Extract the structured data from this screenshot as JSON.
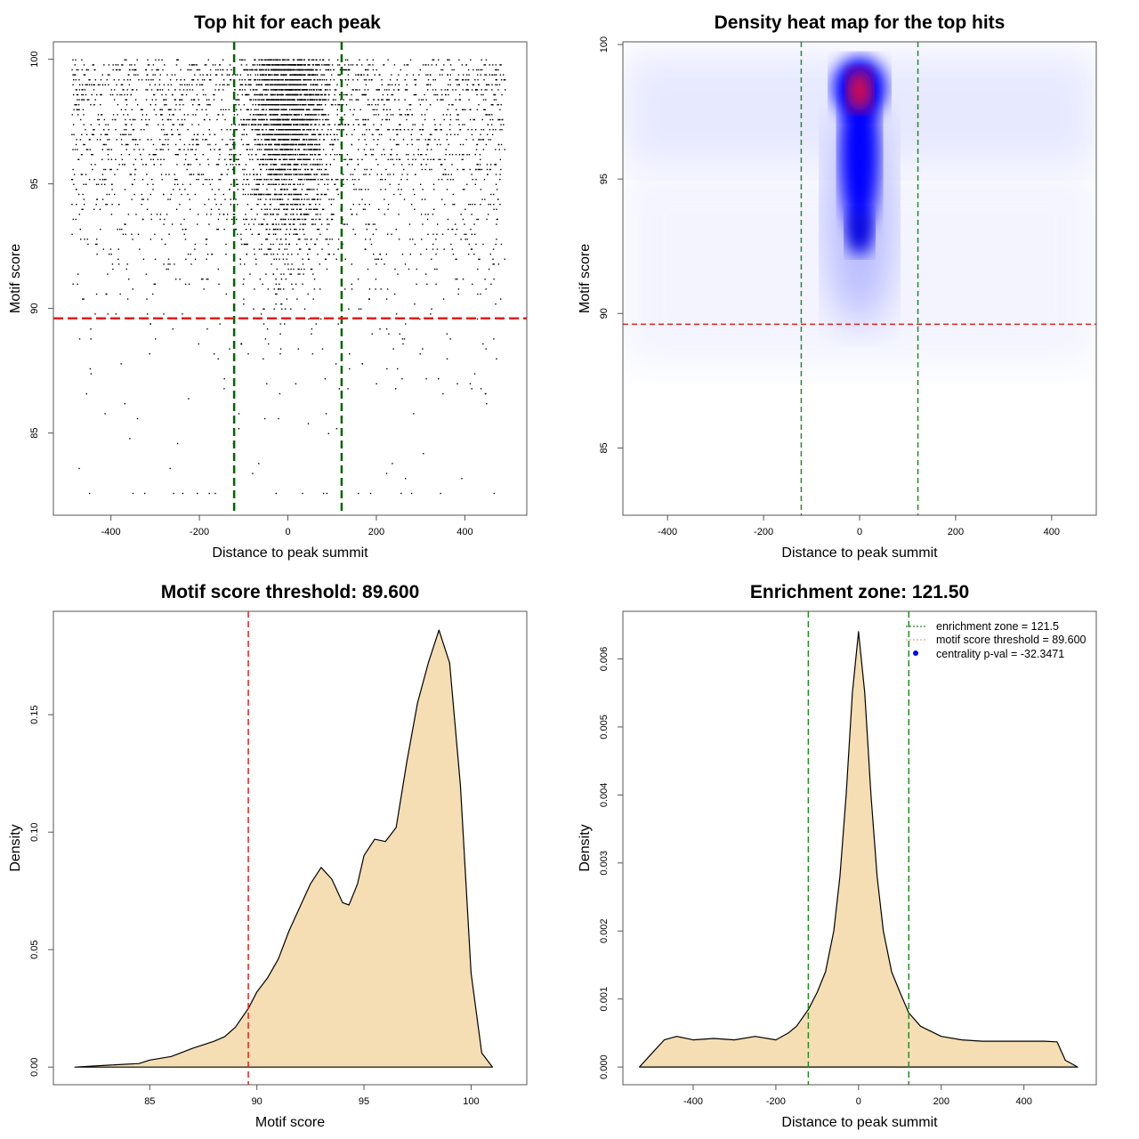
{
  "chart_data": [
    {
      "type": "scatter",
      "title": "Top hit for each peak",
      "xlabel": "Distance to peak summit",
      "ylabel": "Motif score",
      "xticks": [
        -400,
        -200,
        0,
        200,
        400
      ],
      "yticks": [
        85,
        90,
        95,
        100
      ],
      "xlim": [
        -530,
        540
      ],
      "ylim": [
        81.7,
        100.7
      ],
      "vlines": [
        -121.5,
        121.5
      ],
      "hline": 89.6,
      "colors": {
        "points": "#000000",
        "vline": "#006400",
        "hline": "#e0201e"
      }
    },
    {
      "type": "heatmap",
      "title": "Density heat map for the top hits",
      "xlabel": "Distance to peak summit",
      "ylabel": "Motif score",
      "xticks": [
        -400,
        -200,
        0,
        200,
        400
      ],
      "yticks": [
        85,
        90,
        95,
        100
      ],
      "xlim": [
        -493,
        493
      ],
      "ylim": [
        82.5,
        100.1
      ],
      "vlines": [
        -121.5,
        121.5
      ],
      "hline": 89.6,
      "peak": {
        "x": 0,
        "y": 98.3
      },
      "colors": {
        "low": "#ffffff",
        "mid": "#0000ff",
        "high": "#ff0000"
      }
    },
    {
      "type": "area",
      "title": "Motif score threshold: 89.600",
      "xlabel": "Motif score",
      "ylabel": "Density",
      "xticks": [
        85,
        90,
        95,
        100
      ],
      "yticks": [
        0.0,
        0.05,
        0.1,
        0.15
      ],
      "ytick_labels": [
        "0.00",
        "0.05",
        "0.10",
        "0.15"
      ],
      "xlim": [
        80.5,
        102.6
      ],
      "ylim": [
        -0.0075,
        0.194
      ],
      "vline": 89.6,
      "fill": "#f5deb3",
      "x": [
        81.5,
        83,
        84.5,
        85,
        86,
        87,
        88,
        88.5,
        89,
        89.6,
        90,
        90.5,
        91,
        91.5,
        92,
        92.5,
        93,
        93.5,
        94,
        94.3,
        94.7,
        95,
        95.5,
        96,
        96.5,
        97,
        97.5,
        98,
        98.5,
        99,
        99.5,
        100,
        100.5,
        101
      ],
      "y": [
        0,
        0.0008,
        0.0015,
        0.003,
        0.0045,
        0.008,
        0.011,
        0.013,
        0.017,
        0.025,
        0.032,
        0.038,
        0.046,
        0.058,
        0.068,
        0.078,
        0.085,
        0.08,
        0.07,
        0.069,
        0.078,
        0.09,
        0.097,
        0.096,
        0.102,
        0.13,
        0.155,
        0.172,
        0.186,
        0.172,
        0.12,
        0.04,
        0.006,
        0
      ]
    },
    {
      "type": "area",
      "title": "Enrichment zone: 121.50",
      "xlabel": "Distance to peak summit",
      "ylabel": "Density",
      "xticks": [
        -400,
        -200,
        0,
        200,
        400
      ],
      "yticks": [
        0,
        0.001,
        0.002,
        0.003,
        0.004,
        0.005,
        0.006
      ],
      "ytick_labels": [
        "0.000",
        "0.001",
        "0.002",
        "0.003",
        "0.004",
        "0.005",
        "0.006"
      ],
      "xlim": [
        -570,
        575
      ],
      "ylim": [
        -0.00026,
        0.0067
      ],
      "vlines": [
        -121.5,
        121.5
      ],
      "fill": "#f5deb3",
      "x": [
        -530,
        -500,
        -470,
        -440,
        -400,
        -350,
        -300,
        -250,
        -200,
        -170,
        -150,
        -121,
        -100,
        -80,
        -60,
        -45,
        -30,
        -15,
        0,
        15,
        30,
        45,
        60,
        80,
        100,
        121,
        150,
        200,
        250,
        300,
        350,
        400,
        450,
        480,
        500,
        530
      ],
      "y": [
        0,
        0.0002,
        0.0004,
        0.00045,
        0.0004,
        0.00042,
        0.0004,
        0.00045,
        0.0004,
        0.0005,
        0.0006,
        0.00085,
        0.0011,
        0.0014,
        0.002,
        0.0028,
        0.004,
        0.0055,
        0.0064,
        0.0055,
        0.004,
        0.0028,
        0.002,
        0.0014,
        0.0011,
        0.0008,
        0.0006,
        0.00045,
        0.0004,
        0.00038,
        0.00038,
        0.00038,
        0.00038,
        0.00037,
        0.0001,
        0
      ],
      "legend": {
        "position": "top-right",
        "entries": [
          "enrichment zone = 121.5",
          "motif score threshold = 89.600",
          "centrality p-val = -32.3471"
        ]
      }
    }
  ]
}
